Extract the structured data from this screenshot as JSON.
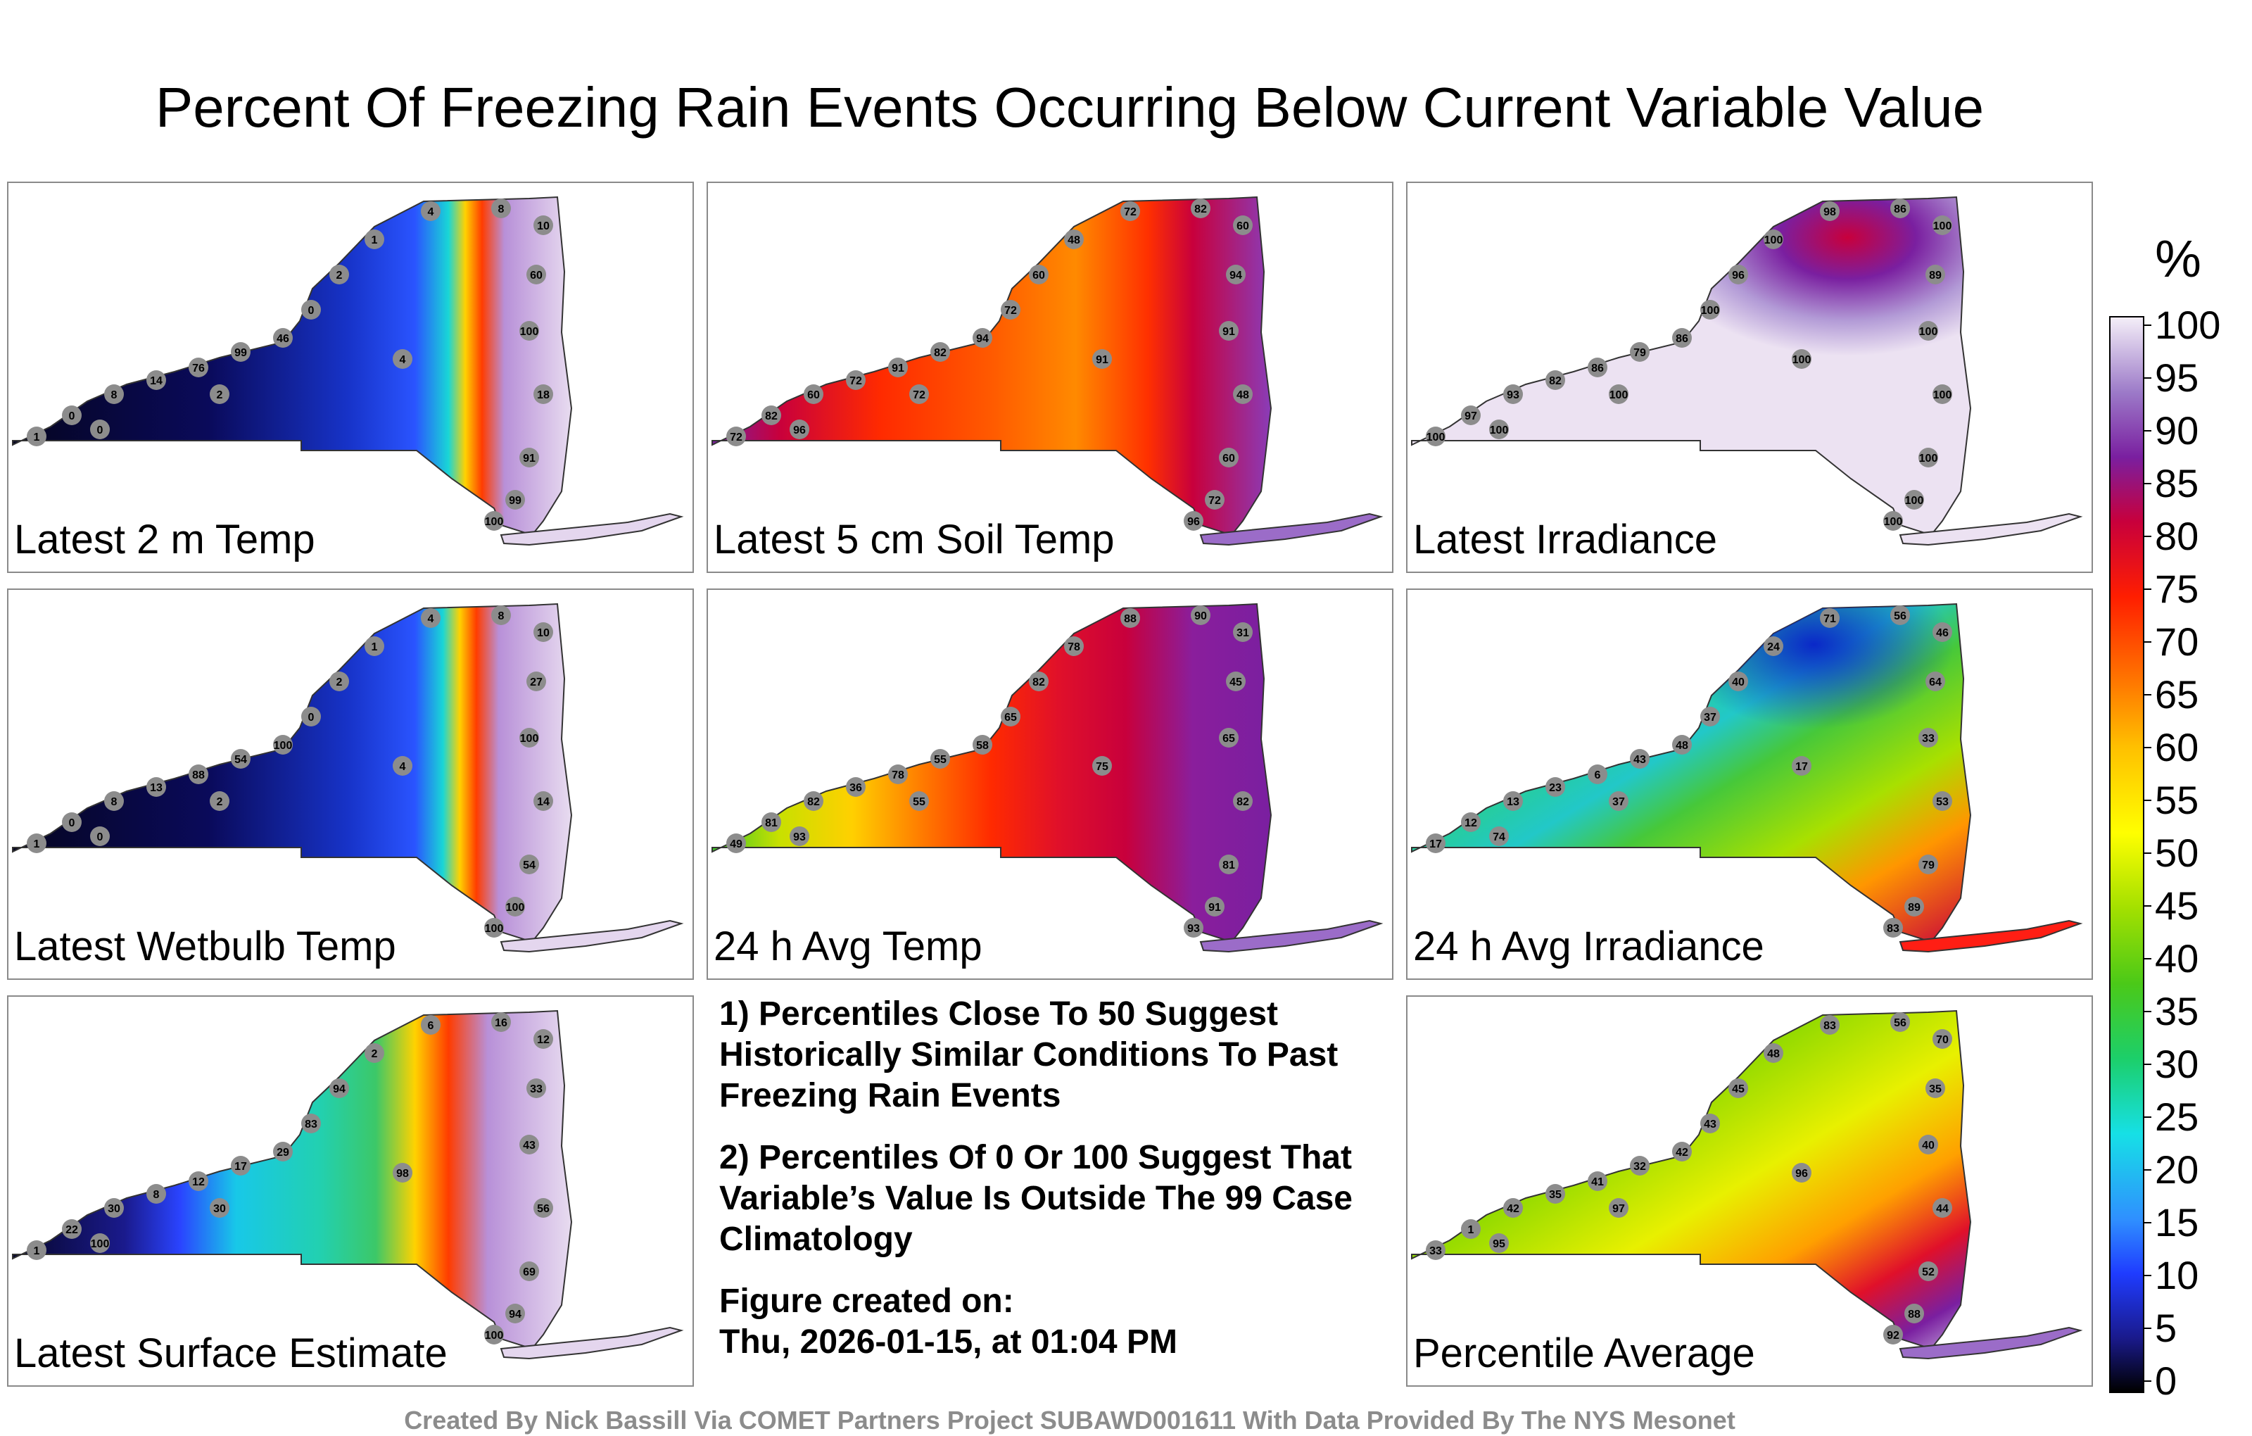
{
  "title": "Percent Of Freezing Rain Events Occurring Below Current Variable Value",
  "panels": [
    {
      "label": "Latest 2 m Temp",
      "sample_values": [
        "1",
        "0",
        "8",
        "14",
        "76",
        "99",
        "46",
        "0",
        "2",
        "1",
        "4",
        "8",
        "10",
        "60",
        "100",
        "18",
        "91",
        "99",
        "100",
        "0",
        "2",
        "4"
      ]
    },
    {
      "label": "Latest 5 cm Soil Temp",
      "sample_values": [
        "72",
        "82",
        "60",
        "72",
        "91",
        "82",
        "94",
        "72",
        "60",
        "48",
        "72",
        "82",
        "60",
        "94",
        "91",
        "48",
        "60",
        "72",
        "96",
        "96",
        "72",
        "91"
      ]
    },
    {
      "label": "Latest Irradiance",
      "sample_values": [
        "100",
        "97",
        "93",
        "82",
        "86",
        "79",
        "86",
        "100",
        "96",
        "100",
        "98",
        "86",
        "100",
        "89",
        "100",
        "100",
        "100",
        "100",
        "100",
        "100",
        "100",
        "100"
      ]
    },
    {
      "label": "Latest Wetbulb Temp",
      "sample_values": [
        "1",
        "0",
        "8",
        "13",
        "88",
        "54",
        "100",
        "0",
        "2",
        "1",
        "4",
        "8",
        "10",
        "27",
        "100",
        "14",
        "54",
        "100",
        "100",
        "0",
        "2",
        "4"
      ]
    },
    {
      "label": "24 h Avg Temp",
      "sample_values": [
        "49",
        "81",
        "82",
        "36",
        "78",
        "55",
        "58",
        "65",
        "82",
        "78",
        "88",
        "90",
        "31",
        "45",
        "65",
        "82",
        "81",
        "91",
        "93",
        "93",
        "55",
        "75"
      ]
    },
    {
      "label": "24 h Avg Irradiance",
      "sample_values": [
        "17",
        "12",
        "13",
        "23",
        "6",
        "43",
        "48",
        "37",
        "40",
        "24",
        "71",
        "56",
        "46",
        "64",
        "33",
        "53",
        "79",
        "89",
        "83",
        "74",
        "37",
        "17"
      ]
    },
    {
      "label": "Latest Surface Estimate",
      "sample_values": [
        "1",
        "22",
        "30",
        "8",
        "12",
        "17",
        "29",
        "83",
        "94",
        "2",
        "6",
        "16",
        "12",
        "33",
        "43",
        "56",
        "69",
        "94",
        "100",
        "100",
        "30",
        "98"
      ]
    },
    {
      "label": "Percentile Average",
      "sample_values": [
        "33",
        "1",
        "42",
        "35",
        "41",
        "32",
        "42",
        "43",
        "45",
        "48",
        "83",
        "56",
        "70",
        "35",
        "40",
        "44",
        "52",
        "88",
        "92",
        "95",
        "97",
        "96"
      ]
    }
  ],
  "notes": [
    "1) Percentiles Close To 50 Suggest Historically Similar Conditions To Past Freezing Rain Events",
    "2) Percentiles Of 0 Or 100 Suggest That Variable’s Value Is Outside The 99 Case Climatology",
    "Figure created on:",
    "Thu, 2026-01-15, at 01:04 PM"
  ],
  "colorbar": {
    "unit": "%",
    "ticks": [
      "100",
      "95",
      "90",
      "85",
      "80",
      "75",
      "70",
      "65",
      "60",
      "55",
      "50",
      "45",
      "40",
      "35",
      "30",
      "25",
      "20",
      "15",
      "10",
      "5",
      "0"
    ]
  },
  "credit": "Created By Nick Bassill Via COMET Partners Project SUBAWD001611 With Data Provided By The NYS Mesonet",
  "colors": {
    "border": "#8a8a8a",
    "station_marker": "#8c8c8c",
    "credit_text": "#8c8c8c"
  }
}
